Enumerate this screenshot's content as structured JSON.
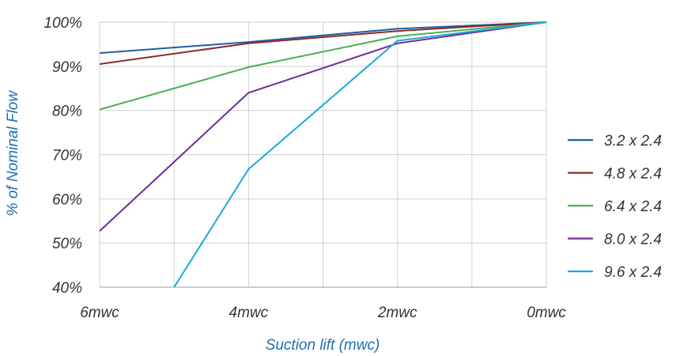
{
  "chart_data": {
    "type": "line",
    "xlabel": "Suction lift (mwc)",
    "ylabel": "% of Nominal Flow",
    "categories": [
      "6mwc",
      "4mwc",
      "2mwc",
      "0mwc"
    ],
    "y_ticks": [
      "40%",
      "50%",
      "60%",
      "70%",
      "80%",
      "90%",
      "100%"
    ],
    "ylim": [
      40,
      100
    ],
    "grid": true,
    "legend_position": "right",
    "series": [
      {
        "name": "3.2 x 2.4",
        "color": "#1f5fa8",
        "points": [
          [
            6,
            93
          ],
          [
            4,
            95.5
          ],
          [
            2,
            98.5
          ],
          [
            0,
            100
          ]
        ]
      },
      {
        "name": "4.8 x 2.4",
        "color": "#8b2a2a",
        "points": [
          [
            6,
            90.5
          ],
          [
            4,
            95.2
          ],
          [
            2,
            98
          ],
          [
            0,
            100
          ]
        ]
      },
      {
        "name": "6.4 x 2.4",
        "color": "#4caf50",
        "points": [
          [
            6,
            80.2
          ],
          [
            4,
            89.8
          ],
          [
            2,
            96.8
          ],
          [
            0,
            100
          ]
        ]
      },
      {
        "name": "8.0 x 2.4",
        "color": "#6f2d91",
        "points": [
          [
            6,
            52.7
          ],
          [
            4,
            84
          ],
          [
            2,
            95.2
          ],
          [
            0,
            100
          ]
        ]
      },
      {
        "name": "9.6 x 2.4",
        "color": "#1aa9e0",
        "points": [
          [
            5,
            40
          ],
          [
            4,
            66.7
          ],
          [
            2,
            95.8
          ],
          [
            0,
            100
          ]
        ]
      }
    ]
  }
}
